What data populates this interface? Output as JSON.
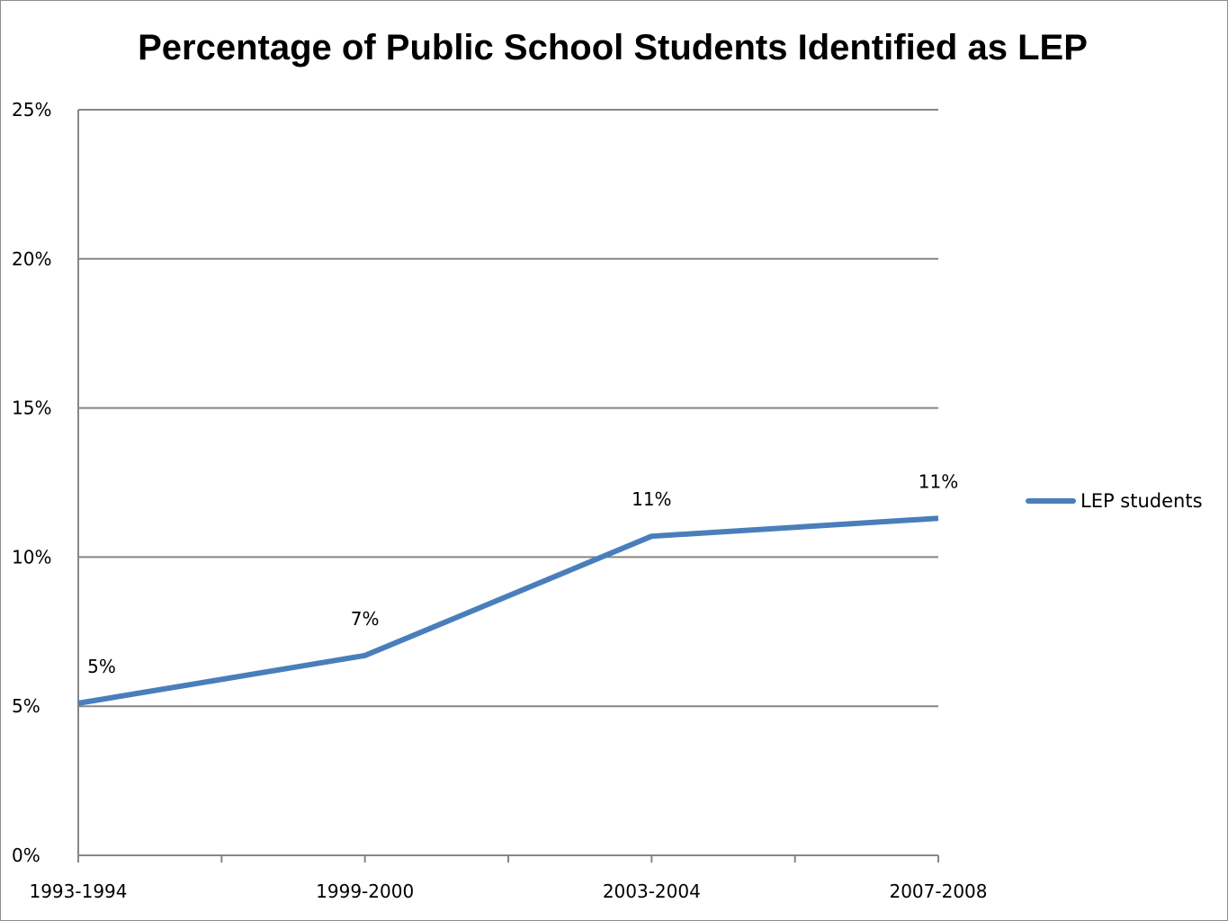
{
  "chart_data": {
    "type": "line",
    "title": "Percentage of Public School Students Identified as LEP",
    "categories": [
      "1993-1994",
      "1999-2000",
      "2003-2004",
      "2007-2008"
    ],
    "series": [
      {
        "name": "LEP students",
        "values": [
          5.1,
          6.7,
          10.7,
          11.3
        ],
        "data_labels": [
          "5%",
          "7%",
          "11%",
          "11%"
        ],
        "color": "#4a7ebb"
      }
    ],
    "ylim": [
      0,
      25
    ],
    "yticks": [
      {
        "value": 0,
        "label": "0%"
      },
      {
        "value": 5,
        "label": "5%"
      },
      {
        "value": 10,
        "label": "10%"
      },
      {
        "value": 15,
        "label": "15%"
      },
      {
        "value": 20,
        "label": "20%"
      },
      {
        "value": 25,
        "label": "25%"
      }
    ],
    "grid": true,
    "legend": "right",
    "gridline_color": "#868686",
    "axis_color": "#868686"
  }
}
